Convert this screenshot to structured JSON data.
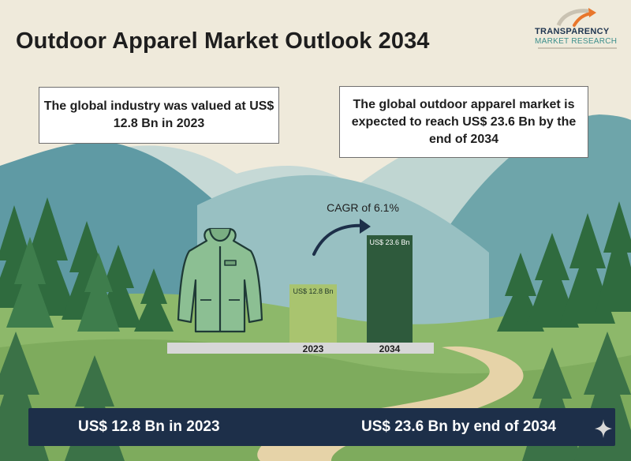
{
  "header": {
    "title": "Outdoor Apparel Market Outlook 2034"
  },
  "logo": {
    "line1": "TRANSPARENCY",
    "line2": "MARKET RESEARCH"
  },
  "callouts": {
    "left": "The global industry was valued at US$ 12.8 Bn in 2023",
    "right": "The global outdoor apparel market is expected to reach US$ 23.6 Bn by the end of 2034"
  },
  "chart_data": {
    "type": "bar",
    "categories": [
      "2023",
      "2034"
    ],
    "values": [
      12.8,
      23.6
    ],
    "data_labels": [
      "US$ 12.8 Bn",
      "US$ 23.6 Bn"
    ],
    "annotation": "CAGR of 6.1%",
    "colors": [
      "#a9c46f",
      "#2e5a3c"
    ]
  },
  "footer": {
    "left": "US$ 12.8 Bn in 2023",
    "right": "US$ 23.6 Bn by end of 2034"
  },
  "icons": {
    "product": "jacket-icon",
    "growth": "curved-arrow-icon",
    "decor": "sparkle-icon"
  }
}
